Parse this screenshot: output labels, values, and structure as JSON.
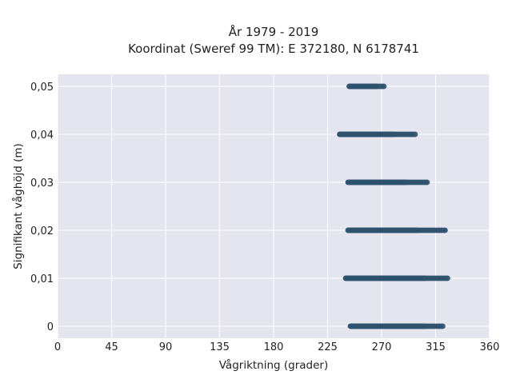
{
  "chart_data": {
    "type": "scatter",
    "title": "År 1979 - 2019",
    "subtitle": "Koordinat (Sweref 99 TM): E 372180, N 6178741",
    "xlabel": "Vågriktning (grader)",
    "ylabel": "Signifikant våghöjd (m)",
    "xlim": [
      0,
      360
    ],
    "ylim": [
      -0.0025,
      0.0525
    ],
    "x_ticks": [
      0,
      45,
      90,
      135,
      180,
      225,
      270,
      315,
      360
    ],
    "x_tick_labels": [
      "0",
      "45",
      "90",
      "135",
      "180",
      "225",
      "270",
      "315",
      "360"
    ],
    "y_ticks": [
      0,
      0.01,
      0.02,
      0.03,
      0.04,
      0.05
    ],
    "y_tick_labels": [
      "0",
      "0,01",
      "0,02",
      "0,03",
      "0,04",
      "0,05"
    ],
    "grid": true,
    "background_color": "#e5e5f0",
    "marker_color": "#2f5470",
    "series": [
      {
        "points_by_height": [
          {
            "y": 0.0,
            "x_min": 244,
            "x_max": 321,
            "dense_x_max": 306
          },
          {
            "y": 0.01,
            "x_min": 240,
            "x_max": 325,
            "dense_x_max": 306
          },
          {
            "y": 0.02,
            "x_min": 242,
            "x_max": 323,
            "dense_x_max": 300
          },
          {
            "y": 0.03,
            "x_min": 242,
            "x_max": 308,
            "dense_x_max": 290
          },
          {
            "y": 0.04,
            "x_min": 235,
            "x_max": 298,
            "dense_x_max": 280
          },
          {
            "y": 0.05,
            "x_min": 243,
            "x_max": 272,
            "dense_x_max": 266
          }
        ]
      }
    ]
  }
}
